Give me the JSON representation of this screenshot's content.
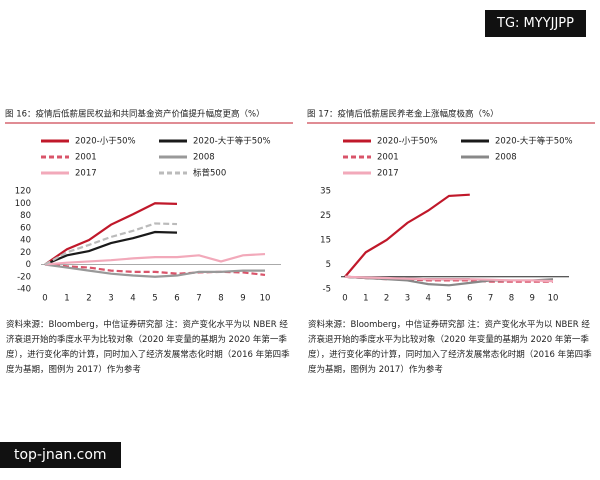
{
  "watermark": "TG: MYYJJPP",
  "site": "top-jnan.com",
  "chart_data": [
    {
      "type": "line",
      "title": "图 16：疫情后低薪居民权益和共同基金资产价值提升幅度更高（%）",
      "x": [
        0,
        1,
        2,
        3,
        4,
        5,
        6,
        7,
        8,
        9,
        10
      ],
      "xlim": [
        0,
        10
      ],
      "xticks": [
        0,
        1,
        2,
        3,
        4,
        5,
        6,
        7,
        8,
        9,
        10
      ],
      "ylim": [
        -40,
        120
      ],
      "yticks": [
        -40,
        -20,
        0,
        20,
        40,
        60,
        80,
        100,
        120
      ],
      "series": [
        {
          "name": "2020-小于50%",
          "color": "#c0182a",
          "dashed": false,
          "values": [
            0,
            25,
            40,
            65,
            82,
            100,
            99,
            null,
            null,
            null,
            null
          ]
        },
        {
          "name": "2020-大于等于50%",
          "color": "#1a1a1a",
          "dashed": false,
          "values": [
            0,
            15,
            22,
            35,
            43,
            53,
            52,
            null,
            null,
            null,
            null
          ]
        },
        {
          "name": "2001",
          "color": "#d9546a",
          "dashed": true,
          "values": [
            0,
            -3,
            -5,
            -10,
            -12,
            -12,
            -15,
            -13,
            -12,
            -13,
            -17
          ]
        },
        {
          "name": "2008",
          "color": "#999999",
          "dashed": false,
          "values": [
            0,
            -5,
            -10,
            -15,
            -18,
            -20,
            -18,
            -12,
            -12,
            -10,
            -10
          ]
        },
        {
          "name": "2017",
          "color": "#f2a9ba",
          "dashed": false,
          "values": [
            0,
            3,
            5,
            7,
            10,
            12,
            12,
            15,
            5,
            15,
            17
          ]
        },
        {
          "name": "标普500",
          "color": "#bbbbbb",
          "dashed": true,
          "values": [
            0,
            20,
            32,
            45,
            55,
            67,
            66,
            null,
            null,
            null,
            null
          ]
        }
      ],
      "note": "资料来源：Bloomberg，中信证券研究部 注：资产变化水平为以 NBER 经济衰退开始的季度水平为比较对象（2020 年变量的基期为 2020 年第一季度），进行变化率的计算，同时加入了经济发展常态化时期（2016 年第四季度为基期，图例为 2017）作为参考"
    },
    {
      "type": "line",
      "title": "图 17：疫情后低薪居民养老金上涨幅度极高（%）",
      "x": [
        0,
        1,
        2,
        3,
        4,
        5,
        6,
        7,
        8,
        9,
        10
      ],
      "xlim": [
        0,
        10
      ],
      "xticks": [
        0,
        1,
        2,
        3,
        4,
        5,
        6,
        7,
        8,
        9,
        10
      ],
      "ylim": [
        -5,
        35
      ],
      "yticks": [
        -5,
        5,
        15,
        25,
        35
      ],
      "series": [
        {
          "name": "2020-小于50%",
          "color": "#c0182a",
          "dashed": false,
          "values": [
            0,
            10,
            15,
            22,
            27,
            33,
            33.5,
            null,
            null,
            null,
            null
          ]
        },
        {
          "name": "2020-大于等于50%",
          "color": "#1a1a1a",
          "dashed": false,
          "values": [
            0,
            -0.5,
            -0.5,
            -0.8,
            -1,
            -1,
            -1,
            null,
            null,
            null,
            null
          ]
        },
        {
          "name": "2001",
          "color": "#d9546a",
          "dashed": true,
          "values": [
            0,
            -0.5,
            -1,
            -1,
            -1.5,
            -1.5,
            -1.5,
            -2,
            -2,
            -2,
            -2
          ]
        },
        {
          "name": "2008",
          "color": "#888888",
          "dashed": false,
          "values": [
            0,
            -0.5,
            -1,
            -1.5,
            -3,
            -3.5,
            -2.5,
            -1.5,
            -1.5,
            -1.5,
            -1
          ]
        },
        {
          "name": "2017",
          "color": "#f2a9ba",
          "dashed": false,
          "values": [
            0,
            -0.3,
            -0.5,
            -0.8,
            -1,
            -1,
            -1,
            -1.2,
            -1.5,
            -1.5,
            -1.8
          ]
        }
      ],
      "note": "资料来源：Bloomberg，中信证券研究部 注：资产变化水平为以 NBER 经济衰退开始的季度水平为比较对象（2020 年变量的基期为 2020 年第一季度），进行变化率的计算，同时加入了经济发展常态化时期（2016 年第四季度为基期，图例为 2017）作为参考"
    }
  ]
}
